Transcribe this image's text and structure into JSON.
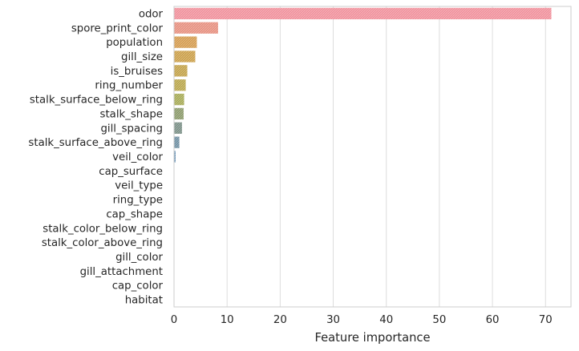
{
  "chart_data": {
    "type": "bar",
    "orientation": "horizontal",
    "title": "",
    "xlabel": "Feature importance",
    "ylabel": "",
    "xlim": [
      0,
      74.8
    ],
    "xticks": [
      0,
      10,
      20,
      30,
      40,
      50,
      60,
      70
    ],
    "grid": "vertical",
    "legend": "none",
    "categories": [
      "odor",
      "spore_print_color",
      "population",
      "gill_size",
      "is_bruises",
      "ring_number",
      "stalk_surface_below_ring",
      "stalk_shape",
      "gill_spacing",
      "stalk_surface_above_ring",
      "veil_color",
      "cap_surface",
      "veil_type",
      "ring_type",
      "cap_shape",
      "stalk_color_below_ring",
      "stalk_color_above_ring",
      "gill_color",
      "gill_attachment",
      "cap_color",
      "habitat"
    ],
    "values": [
      71.1,
      8.3,
      4.3,
      4.0,
      2.5,
      2.2,
      1.9,
      1.8,
      1.5,
      1.0,
      0.3,
      0,
      0,
      0,
      0,
      0,
      0,
      0,
      0,
      0,
      0
    ],
    "colors": [
      "#f0909b",
      "#e6907f",
      "#d49b4f",
      "#cb9f49",
      "#c3a249",
      "#b9a64c",
      "#a6aa55",
      "#8b9a6a",
      "#7a8f86",
      "#6f8fa2",
      "#6a93b5",
      "#5f98c8",
      "#6a8fd6",
      "#8a86da",
      "#a57ed8",
      "#bb76d2",
      "#cc6fc8",
      "#da6bb8",
      "#e16fa5",
      "#e67890",
      "#ea8288"
    ],
    "bar_style": "hatched"
  }
}
